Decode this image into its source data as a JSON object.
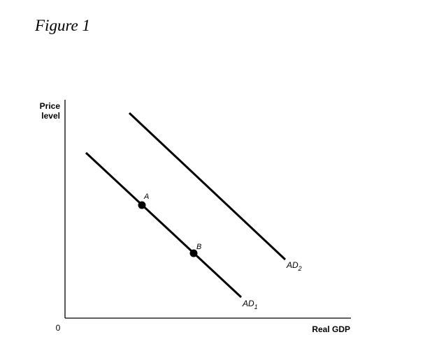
{
  "figure": {
    "title": "Figure 1"
  },
  "axes": {
    "y_label_line1": "Price",
    "y_label_line2": "level",
    "x_label": "Real GDP",
    "origin": "0"
  },
  "curves": {
    "ad1": {
      "main": "AD",
      "sub": "1"
    },
    "ad2": {
      "main": "AD",
      "sub": "2"
    }
  },
  "points": {
    "a": "A",
    "b": "B"
  },
  "colors": {
    "line": "#000000",
    "background": "#ffffff"
  }
}
